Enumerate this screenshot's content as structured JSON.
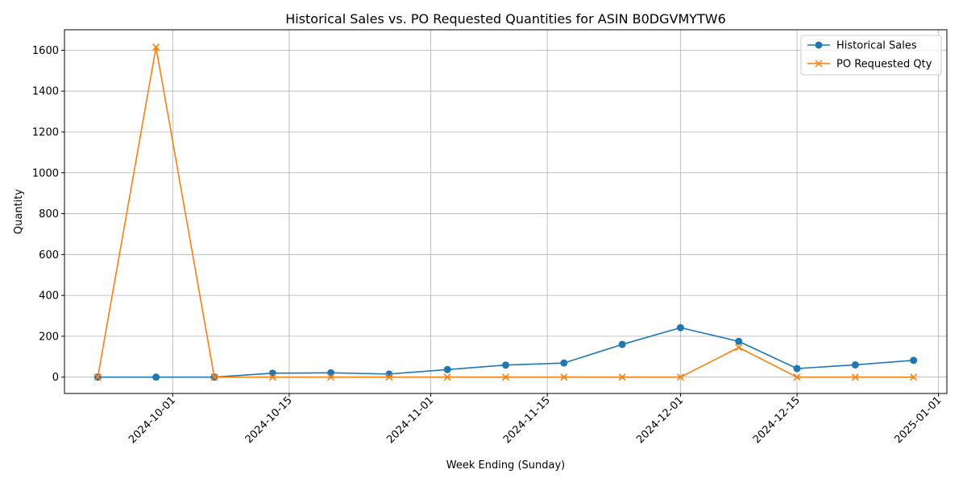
{
  "chart_data": {
    "type": "line",
    "title": "Historical Sales vs. PO Requested Quantities for ASIN B0DGVMYTW6",
    "xlabel": "Week Ending (Sunday)",
    "ylabel": "Quantity",
    "x": [
      "2024-09-22",
      "2024-09-29",
      "2024-10-06",
      "2024-10-13",
      "2024-10-20",
      "2024-10-27",
      "2024-11-03",
      "2024-11-10",
      "2024-11-17",
      "2024-11-24",
      "2024-12-01",
      "2024-12-08",
      "2024-12-15",
      "2024-12-22",
      "2024-12-29"
    ],
    "xlim": [
      "2024-09-18",
      "2025-01-02"
    ],
    "ylim": [
      -80,
      1700
    ],
    "x_tick_labels": [
      "2024-10-01",
      "2024-10-15",
      "2024-11-01",
      "2024-11-15",
      "2024-12-01",
      "2024-12-15",
      "2025-01-01"
    ],
    "y_tick_labels": [
      "0",
      "200",
      "400",
      "600",
      "800",
      "1000",
      "1200",
      "1400",
      "1600"
    ],
    "grid": true,
    "legend_position": "upper right",
    "series": [
      {
        "name": "Historical Sales",
        "color": "#1f77b4",
        "marker": "circle",
        "values": [
          0,
          0,
          0,
          19,
          21,
          15,
          37,
          59,
          69,
          160,
          242,
          175,
          42,
          60,
          82
        ]
      },
      {
        "name": "PO Requested Qty",
        "color": "#ff7f0e",
        "marker": "x",
        "values": [
          0,
          1615,
          0,
          0,
          0,
          0,
          0,
          0,
          0,
          0,
          0,
          145,
          0,
          0,
          0
        ]
      }
    ]
  }
}
